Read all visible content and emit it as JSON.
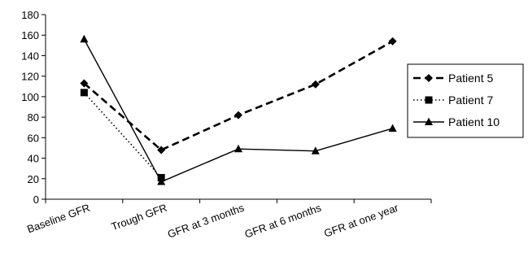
{
  "chart_data": {
    "type": "line",
    "title": "",
    "xlabel": "",
    "ylabel": "",
    "categories": [
      "Baseline GFR",
      "Trough GFR",
      "GFR at 3 months",
      "GFR at 6 months",
      "GFR at one year"
    ],
    "ylim": [
      0,
      180
    ],
    "yticks": [
      0,
      20,
      40,
      60,
      80,
      100,
      120,
      140,
      160,
      180
    ],
    "grid": false,
    "legend_position": "right",
    "series": [
      {
        "name": "Patient 5",
        "values": [
          113,
          48,
          82,
          112,
          154
        ],
        "marker": "diamond",
        "dash": "dashed",
        "color": "#000000"
      },
      {
        "name": "Patient 7",
        "values": [
          104,
          21,
          null,
          null,
          null
        ],
        "marker": "square",
        "dash": "dotted",
        "color": "#000000"
      },
      {
        "name": "Patient 10",
        "values": [
          156,
          17,
          49,
          47,
          69
        ],
        "marker": "triangle",
        "dash": "solid",
        "color": "#000000"
      }
    ]
  }
}
